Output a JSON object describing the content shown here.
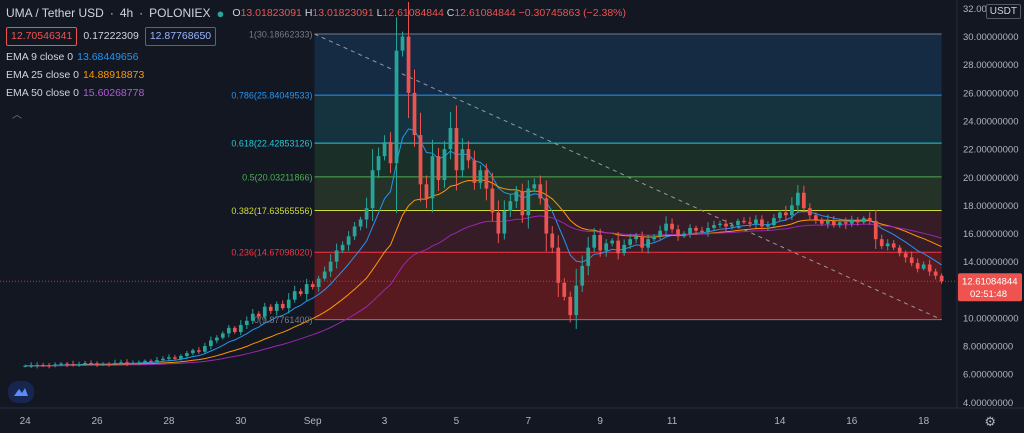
{
  "header": {
    "symbol": "UMA / Tether USD",
    "interval": "4h",
    "exchange": "POLONIEX",
    "ohlc": {
      "o_label": "O",
      "o": "13.01823091",
      "h_label": "H",
      "h": "13.01823091",
      "l_label": "L",
      "l": "12.61084844",
      "c_label": "C",
      "c": "12.61084844",
      "change": "−0.30745863 (−2.38%)"
    },
    "bid": "12.70546341",
    "spread": "0.17222309",
    "ask": "12.87768650"
  },
  "indicators": [
    {
      "label": "EMA 9 close 0",
      "value": "13.68449656",
      "color": "#2196f3"
    },
    {
      "label": "EMA 25 close 0",
      "value": "14.88918873",
      "color": "#ff9800"
    },
    {
      "label": "EMA 50 close 0",
      "value": "15.60268778",
      "color": "#9c27b0"
    }
  ],
  "currency_badge": "USDT",
  "icons": {
    "logo": "tradingview-logo-icon",
    "settings": "gear-icon",
    "dot": "live-dot-icon",
    "hide": "chevron-up-icon"
  },
  "colors": {
    "up": "#26a69a",
    "down": "#ef5350",
    "ema9": "#2196f3",
    "ema25": "#ff9800",
    "ema50": "#9c27b0",
    "background": "#131722"
  },
  "chart_data": {
    "type": "candlestick",
    "title": "UMA / Tether USD · 4h · POLONIEX",
    "ylim": [
      3.6,
      32.6
    ],
    "xlim": [
      -0.7,
      25.9
    ],
    "y_ticks": [
      "4.00000000",
      "6.00000000",
      "8.00000000",
      "10.00000000",
      "12.00000000",
      "14.00000000",
      "16.00000000",
      "18.00000000",
      "20.00000000",
      "22.00000000",
      "24.00000000",
      "26.00000000",
      "28.00000000",
      "30.00000000",
      "32.00000000"
    ],
    "y_tick_values": [
      4,
      6,
      8,
      10,
      12,
      14,
      16,
      18,
      20,
      22,
      24,
      26,
      28,
      30,
      32
    ],
    "x_ticks": [
      {
        "label": "24",
        "day": 0
      },
      {
        "label": "26",
        "day": 2
      },
      {
        "label": "28",
        "day": 4
      },
      {
        "label": "30",
        "day": 6
      },
      {
        "label": "Sep",
        "day": 8
      },
      {
        "label": "3",
        "day": 10
      },
      {
        "label": "5",
        "day": 12
      },
      {
        "label": "7",
        "day": 14
      },
      {
        "label": "9",
        "day": 16
      },
      {
        "label": "11",
        "day": 18
      },
      {
        "label": "14",
        "day": 21
      },
      {
        "label": "16",
        "day": 23
      },
      {
        "label": "18",
        "day": 25
      }
    ],
    "last_price": {
      "value": 12.61084844,
      "label": "12.61084844",
      "countdown": "02:51:48"
    },
    "fibonacci": {
      "start_day": 8.05,
      "end_day": 25.5,
      "levels": [
        {
          "ratio": "1",
          "price": 30.18662333,
          "label": "1(30.18662333)",
          "color": "#787b86",
          "fill": "#787b86"
        },
        {
          "ratio": "0.786",
          "price": 25.84049533,
          "label": "0.786(25.84049533)",
          "color": "#2196f3",
          "fill": "#2196f3"
        },
        {
          "ratio": "0.618",
          "price": 22.42853126,
          "label": "0.618(22.42853126)",
          "color": "#26c6da",
          "fill": "#26c6da"
        },
        {
          "ratio": "0.5",
          "price": 20.03211866,
          "label": "0.5(20.03211866)",
          "color": "#4caf50",
          "fill": "#4caf50"
        },
        {
          "ratio": "0.382",
          "price": 17.63565556,
          "label": "0.382(17.63565556)",
          "color": "#cddc39",
          "fill": "#8bc34a"
        },
        {
          "ratio": "0.236",
          "price": 14.6709802,
          "label": "0.236(14.67098020)",
          "color": "#f23645",
          "fill": "#f23645"
        },
        {
          "ratio": "0",
          "price": 9.877614,
          "label": "0(9.87761400)",
          "color": "#787b86",
          "fill": null
        }
      ],
      "trend_line": {
        "from": {
          "day": 8.05,
          "price": 30.18662333
        },
        "to": {
          "day": 25.5,
          "price": 9.877614
        }
      }
    },
    "candles_per_day": 6,
    "closes": [
      6.6,
      6.6,
      6.65,
      6.62,
      6.6,
      6.7,
      6.75,
      6.72,
      6.68,
      6.7,
      6.8,
      6.78,
      6.7,
      6.75,
      6.72,
      6.8,
      6.85,
      6.8,
      6.8,
      6.85,
      6.95,
      6.9,
      7.0,
      7.1,
      7.2,
      7.1,
      7.3,
      7.5,
      7.7,
      7.6,
      8.0,
      8.4,
      8.6,
      8.9,
      9.3,
      9.0,
      9.5,
      9.8,
      10.3,
      10.1,
      10.8,
      10.5,
      11.0,
      10.7,
      11.3,
      11.9,
      11.7,
      12.4,
      12.2,
      12.8,
      13.3,
      14.0,
      14.8,
      15.2,
      15.8,
      16.5,
      17.0,
      17.8,
      20.5,
      21.5,
      22.5,
      21.0,
      29.0,
      30.0,
      26.0,
      23.0,
      19.5,
      18.5,
      21.5,
      19.8,
      22.0,
      23.5,
      20.5,
      22.0,
      21.2,
      19.6,
      20.5,
      19.2,
      17.5,
      16.0,
      17.6,
      18.3,
      19.0,
      17.3,
      19.2,
      19.5,
      18.5,
      16.0,
      15.0,
      12.5,
      11.5,
      10.2,
      12.3,
      13.7,
      15.0,
      15.9,
      14.8,
      15.3,
      15.5,
      14.6,
      15.2,
      15.6,
      15.8,
      15.0,
      15.6,
      15.8,
      16.2,
      16.7,
      16.3,
      15.8,
      16.0,
      16.4,
      16.2,
      16.1,
      16.4,
      16.6,
      16.7,
      16.5,
      16.6,
      16.9,
      16.8,
      16.7,
      17.0,
      16.5,
      16.6,
      17.1,
      17.5,
      17.3,
      18.0,
      18.9,
      17.8,
      17.3,
      17.0,
      16.7,
      16.9,
      16.6,
      16.8,
      16.7,
      17.0,
      16.8,
      17.1,
      16.9,
      15.6,
      15.1,
      15.3,
      15.0,
      14.6,
      14.3,
      13.9,
      13.5,
      13.8,
      13.3,
      13.0,
      12.61
    ]
  }
}
